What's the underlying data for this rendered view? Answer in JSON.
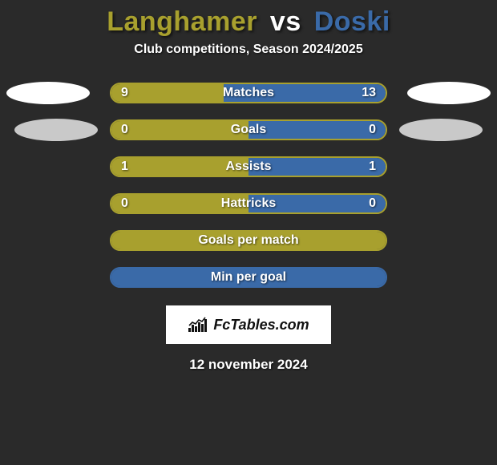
{
  "background_color": "#2a2a2a",
  "title": {
    "player1": "Langhamer",
    "vs": "vs",
    "player2": "Doski",
    "player1_color": "#a8a02e",
    "vs_color": "#ffffff",
    "player2_color": "#3a6aa8"
  },
  "subtitle": "Club competitions, Season 2024/2025",
  "player1_color": "#a8a02e",
  "player2_color": "#3a6aa8",
  "stats": [
    {
      "label": "Matches",
      "left_val": "9",
      "right_val": "13",
      "left_pct": 40.9,
      "right_pct": 59.1,
      "show_ellipses": true,
      "ellipse_style": 1
    },
    {
      "label": "Goals",
      "left_val": "0",
      "right_val": "0",
      "left_pct": 50,
      "right_pct": 50,
      "show_ellipses": true,
      "ellipse_style": 2
    },
    {
      "label": "Assists",
      "left_val": "1",
      "right_val": "1",
      "left_pct": 50,
      "right_pct": 50,
      "show_ellipses": false
    },
    {
      "label": "Hattricks",
      "left_val": "0",
      "right_val": "0",
      "left_pct": 50,
      "right_pct": 50,
      "show_ellipses": false
    },
    {
      "label": "Goals per match",
      "left_val": "",
      "right_val": "",
      "left_pct": 100,
      "right_pct": 0,
      "show_ellipses": false,
      "full_left": true
    },
    {
      "label": "Min per goal",
      "left_val": "",
      "right_val": "",
      "left_pct": 0,
      "right_pct": 100,
      "show_ellipses": false,
      "full_right": true
    }
  ],
  "logo_text": "FcTables.com",
  "date": "12 november 2024"
}
